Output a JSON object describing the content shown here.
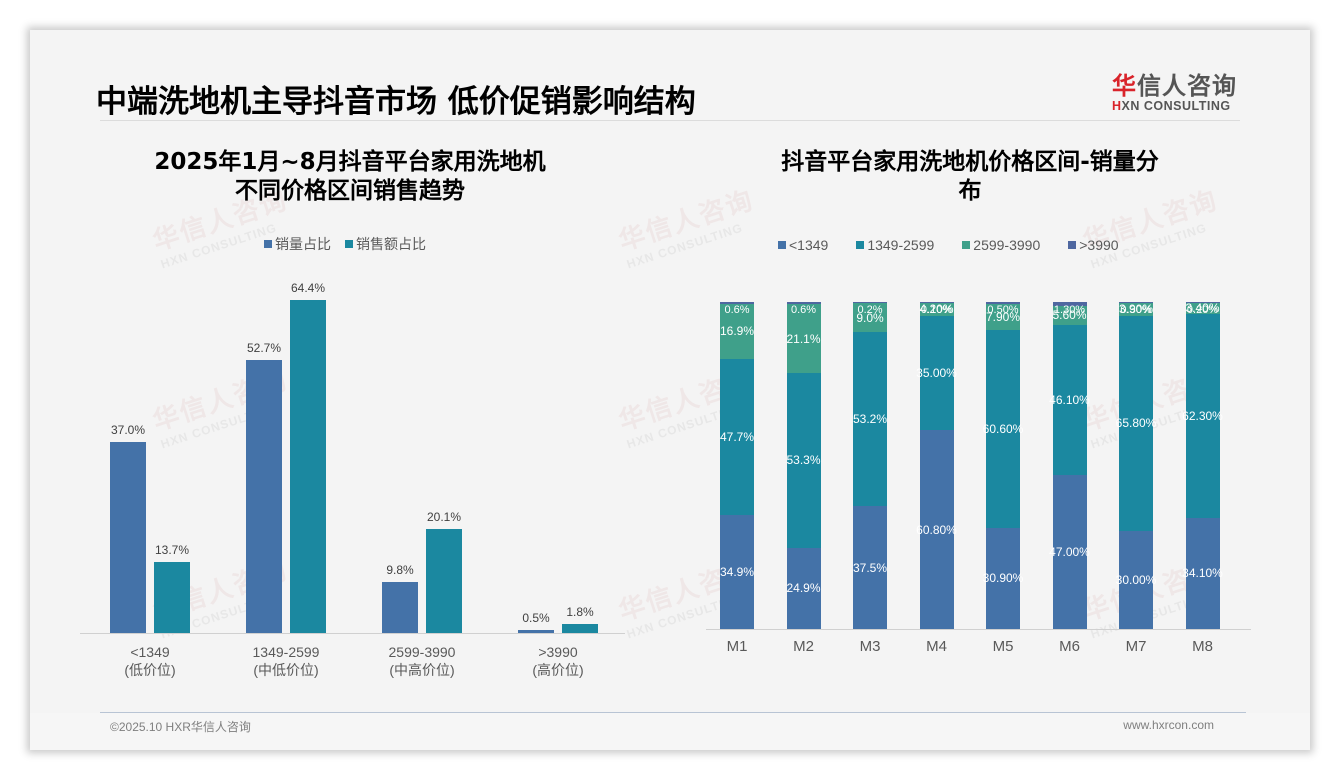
{
  "header": {
    "title": "中端洗地机主导抖音市场 低价促销影响结构",
    "logo_cn_first": "华",
    "logo_cn_rest": "信人咨询",
    "logo_en_first": "H",
    "logo_en_rest": "XN CONSULTING"
  },
  "watermark": {
    "cn": "华信人咨询",
    "en": "HXN CONSULTING"
  },
  "left_chart": {
    "title_line1": "2025年1月~8月抖音平台家用洗地机",
    "title_line2": "不同价格区间销售趋势",
    "legend": [
      {
        "label": "销量占比",
        "color": "#4472a8"
      },
      {
        "label": "销售额占比",
        "color": "#1b88a0"
      }
    ]
  },
  "right_chart": {
    "title_line1": "抖音平台家用洗地机价格区间-销量分",
    "title_line2": "布",
    "legend": [
      {
        "label": "<1349",
        "color": "#4472a8"
      },
      {
        "label": "1349-2599",
        "color": "#1b88a0"
      },
      {
        "label": "2599-3990",
        "color": "#3fa08a"
      },
      {
        "label": ">3990",
        "color": "#4f67a0"
      }
    ]
  },
  "chart_data": [
    {
      "type": "bar",
      "title": "2025年1月~8月抖音平台家用洗地机不同价格区间销售趋势",
      "categories": [
        "<1349",
        "1349-2599",
        "2599-3990",
        ">3990"
      ],
      "category_sublabels": [
        "(低价位)",
        "(中低价位)",
        "(中高价位)",
        "(高价位)"
      ],
      "series": [
        {
          "name": "销量占比",
          "values": [
            37.0,
            52.7,
            9.8,
            0.5
          ],
          "labels": [
            "37.0%",
            "52.7%",
            "9.8%",
            "0.5%"
          ],
          "color": "#4472a8"
        },
        {
          "name": "销售额占比",
          "values": [
            13.7,
            64.4,
            20.1,
            1.8
          ],
          "labels": [
            "13.7%",
            "64.4%",
            "20.1%",
            "1.8%"
          ],
          "color": "#1b88a0"
        }
      ],
      "xlabel": "",
      "ylabel": "",
      "ylim": [
        0,
        70
      ],
      "grid": false,
      "legend_position": "top"
    },
    {
      "type": "bar",
      "stacked": true,
      "title": "抖音平台家用洗地机价格区间-销量分布",
      "categories": [
        "M1",
        "M2",
        "M3",
        "M4",
        "M5",
        "M6",
        "M7",
        "M8"
      ],
      "series": [
        {
          "name": "<1349",
          "values": [
            34.9,
            24.9,
            37.5,
            60.8,
            30.9,
            47.0,
            30.0,
            34.1
          ],
          "labels": [
            "34.9%",
            "24.9%",
            "37.5%",
            "60.80%",
            "30.90%",
            "47.00%",
            "30.00%",
            "34.10%"
          ],
          "color": "#4472a8"
        },
        {
          "name": "1349-2599",
          "values": [
            47.7,
            53.3,
            53.2,
            35.0,
            60.6,
            46.1,
            65.8,
            62.3
          ],
          "labels": [
            "47.7%",
            "53.3%",
            "53.2%",
            "35.00%",
            "60.60%",
            "46.10%",
            "65.80%",
            "62.30%"
          ],
          "color": "#1b88a0"
        },
        {
          "name": "2599-3990",
          "values": [
            16.9,
            21.1,
            9.0,
            4.2,
            7.9,
            5.6,
            3.9,
            3.4
          ],
          "labels": [
            "16.9%",
            "21.1%",
            "9.0%",
            "4.20%",
            "7.90%",
            "5.60%",
            "3.90%",
            "3.40%"
          ],
          "color": "#3fa08a"
        },
        {
          "name": ">3990",
          "values": [
            0.6,
            0.6,
            0.2,
            0.1,
            0.5,
            1.3,
            0.3,
            0.2
          ],
          "labels": [
            "0.6%",
            "0.6%",
            "0.2%",
            "0.10%",
            "0.50%",
            "1.30%",
            "0.30%",
            "0.20%"
          ],
          "color": "#4f67a0"
        }
      ],
      "xlabel": "",
      "ylabel": "",
      "ylim": [
        0,
        100
      ],
      "grid": false,
      "legend_position": "top"
    }
  ],
  "footer": {
    "copyright": "©2025.10 HXR华信人咨询",
    "website": "www.hxrcon.com"
  }
}
